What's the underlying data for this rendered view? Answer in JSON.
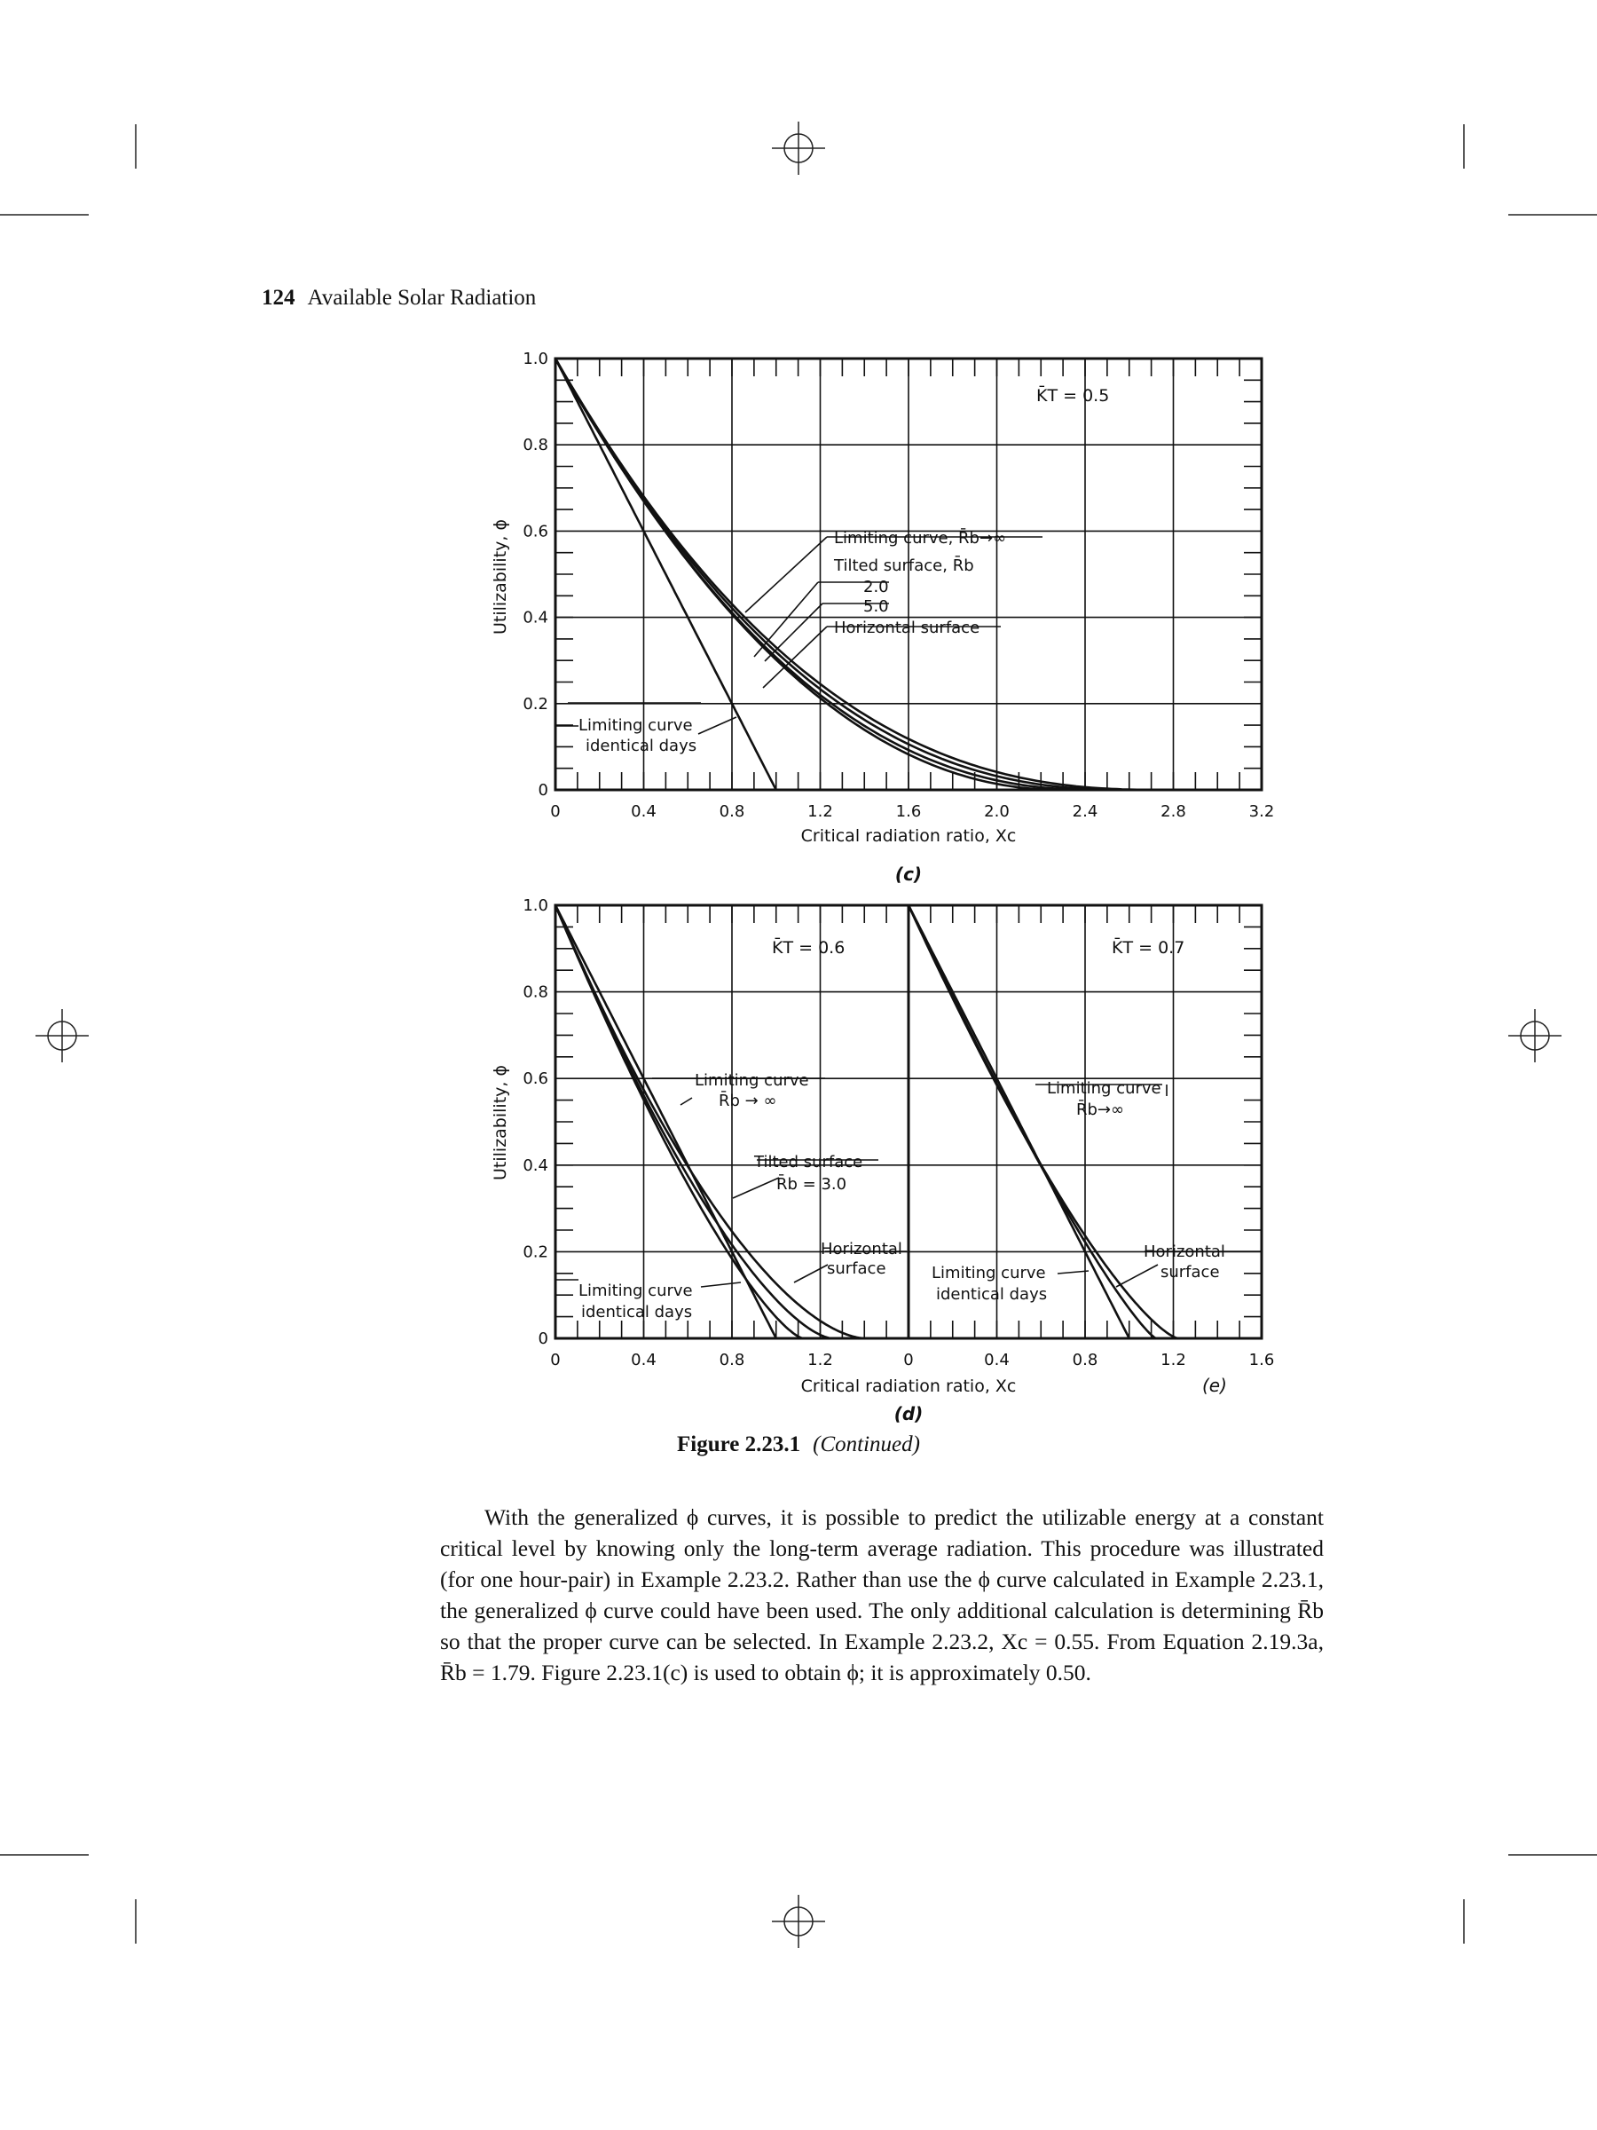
{
  "header": {
    "page_number": "124",
    "running_title": "Available Solar Radiation"
  },
  "figure": {
    "caption_number": "Figure 2.23.1",
    "caption_suffix": "(Continued)",
    "panel_c": {
      "label": "(c)",
      "kt_label": "K̄T = 0.5",
      "ylabel": "Utilizability, ϕ",
      "xlabel": "Critical radiation ratio, Xc",
      "x_ticks": [
        "0",
        "0.4",
        "0.8",
        "1.2",
        "1.6",
        "2.0",
        "2.4",
        "2.8",
        "3.2"
      ],
      "y_ticks": [
        "0",
        "0.2",
        "0.4",
        "0.6",
        "0.8",
        "1.0"
      ],
      "annotations": {
        "limiting_inf": "Limiting curve, R̄b→∞",
        "tilted": "Tilted surface, R̄b",
        "r2": "2.0",
        "r5": "5.0",
        "horizontal": "Horizontal surface",
        "identical_1": "Limiting curve",
        "identical_2": "identical days"
      }
    },
    "panel_d": {
      "label": "(d)",
      "kt_label": "K̄T = 0.6",
      "ylabel": "Utilizability, ϕ",
      "xlabel": "Critical radiation ratio, Xc",
      "x_ticks": [
        "0",
        "0.4",
        "0.8",
        "1.2"
      ],
      "y_ticks": [
        "0",
        "0.2",
        "0.4",
        "0.6",
        "0.8",
        "1.0"
      ],
      "annotations": {
        "limiting_1": "Limiting curve",
        "limiting_2": "R̄b → ∞",
        "tilted_1": "Tilted surface",
        "tilted_2": "R̄b = 3.0",
        "horizontal_1": "Horizontal",
        "horizontal_2": "surface",
        "identical_1": "Limiting curve",
        "identical_2": "identical days"
      }
    },
    "panel_e": {
      "label": "(e)",
      "kt_label": "K̄T = 0.7",
      "x_ticks": [
        "0",
        "0.4",
        "0.8",
        "1.2",
        "1.6"
      ],
      "annotations": {
        "limiting_1": "Limiting curve",
        "limiting_2": "R̄b→∞",
        "identical_1": "Limiting curve",
        "identical_2": "identical days",
        "horizontal_1": "Horizontal",
        "horizontal_2": "surface"
      }
    }
  },
  "body_text": "With the generalized ϕ curves, it is possible to predict the utilizable energy at a constant critical level by knowing only the long-term average radiation. This procedure was illustrated (for one hour-pair) in Example 2.23.2. Rather than use the ϕ curve calculated in Example 2.23.1, the generalized ϕ curve could have been used. The only additional calculation is determining R̄b so that the proper curve can be selected. In Example 2.23.2, Xc = 0.55. From Equation 2.19.3a, R̄b = 1.79. Figure 2.23.1(c) is used to obtain ϕ; it is approximately 0.50."
}
